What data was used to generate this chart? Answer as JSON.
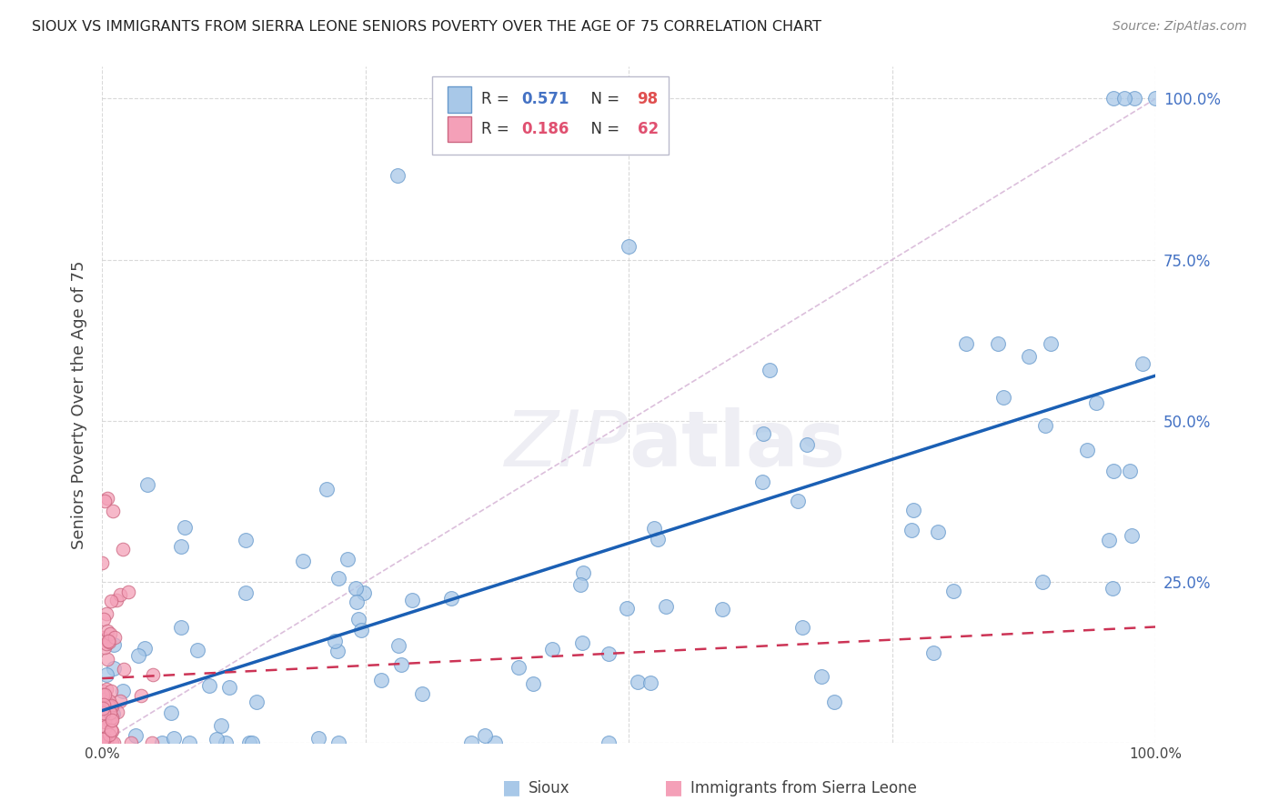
{
  "title": "SIOUX VS IMMIGRANTS FROM SIERRA LEONE SENIORS POVERTY OVER THE AGE OF 75 CORRELATION CHART",
  "source": "Source: ZipAtlas.com",
  "ylabel": "Seniors Poverty Over the Age of 75",
  "legend_label1": "Sioux",
  "legend_label2": "Immigrants from Sierra Leone",
  "R1": 0.571,
  "N1": 98,
  "R2": 0.186,
  "N2": 62,
  "color1": "#a8c8e8",
  "color1_edge": "#6699cc",
  "color2": "#f4a0b8",
  "color2_edge": "#cc6680",
  "trend1_color": "#1a5fb4",
  "trend2_color": "#cc3355",
  "diag_color": "#d8b8d8",
  "bg_color": "#ffffff",
  "grid_color": "#d0d0d0",
  "watermark_color": "#eeeef4",
  "right_tick_color": "#4472c4",
  "title_color": "#222222",
  "source_color": "#888888",
  "label_color": "#444444"
}
